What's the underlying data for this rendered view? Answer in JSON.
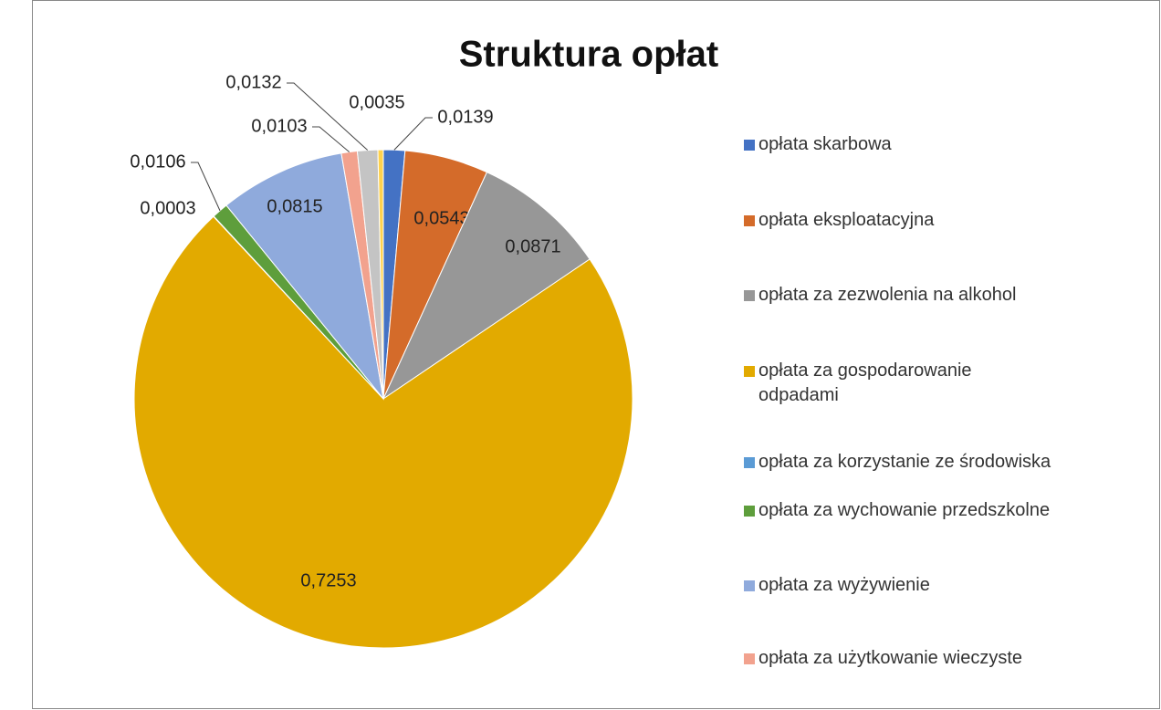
{
  "chart_data": {
    "type": "pie",
    "title": "Struktura opłat",
    "categories": [
      "opłata skarbowa",
      "opłata eksploatacyjna",
      "opłata za zezwolenia na alkohol",
      "opłata za gospodarowanie odpadami",
      "opłata za korzystanie ze środowiska",
      "opłata za wychowanie przedszkolne",
      "opłata za wyżywienie",
      "opłata za użytkowanie wieczyste",
      null,
      null
    ],
    "values": [
      0.0139,
      0.0543,
      0.0871,
      0.7253,
      0.0003,
      0.0106,
      0.0815,
      0.0103,
      0.0132,
      0.0035
    ],
    "value_labels": [
      "0,0139",
      "0,0543",
      "0,0871",
      "0,7253",
      "0,0003",
      "0,0106",
      "0,0815",
      "0,0103",
      "0,0132",
      "0,0035"
    ],
    "colors": [
      "#4472c4",
      "#d46b2a",
      "#979797",
      "#e2aa00",
      "#5b9bd5",
      "#5e9e3c",
      "#8faadc",
      "#f2a28e",
      "#c4c4c4",
      "#ffd24d"
    ]
  }
}
